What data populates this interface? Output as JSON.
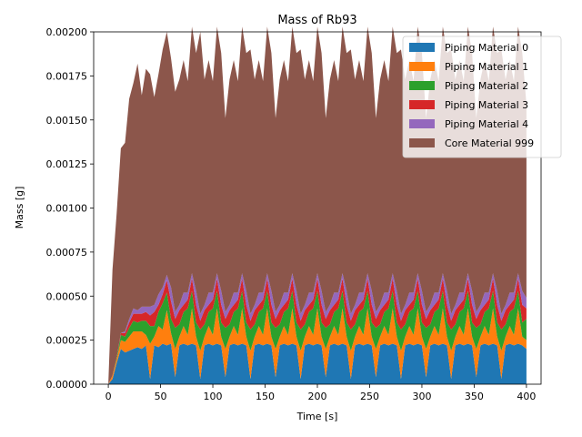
{
  "chart_data": {
    "type": "area",
    "stacked": true,
    "title": "Mass of Rb93",
    "xlabel": "Time [s]",
    "ylabel": "Mass [g]",
    "xlim": [
      -14,
      414
    ],
    "ylim": [
      0,
      0.002
    ],
    "xticks": [
      0,
      50,
      100,
      150,
      200,
      250,
      300,
      350,
      400
    ],
    "xtick_labels": [
      "0",
      "50",
      "100",
      "150",
      "200",
      "250",
      "300",
      "350",
      "400"
    ],
    "yticks": [
      0,
      0.00025,
      0.0005,
      0.00075,
      0.001,
      0.00125,
      0.0015,
      0.00175,
      0.002
    ],
    "ytick_labels": [
      "0.00000",
      "0.00025",
      "0.00050",
      "0.00075",
      "0.00100",
      "0.00125",
      "0.00150",
      "0.00175",
      "0.00200"
    ],
    "legend_position": "top-right",
    "grid": false,
    "x": [
      0,
      4,
      8,
      12,
      16,
      20,
      24,
      28,
      32,
      36,
      40,
      44,
      48,
      52,
      56,
      60,
      64,
      68,
      72,
      76,
      80,
      84,
      88,
      92,
      96,
      100,
      104,
      108,
      112,
      116,
      120,
      124,
      128,
      132,
      136,
      140,
      144,
      148,
      152,
      156,
      160,
      164,
      168,
      172,
      176,
      180,
      184,
      188,
      192,
      196,
      200,
      204,
      208,
      212,
      216,
      220,
      224,
      228,
      232,
      236,
      240,
      244,
      248,
      252,
      256,
      260,
      264,
      268,
      272,
      276,
      280,
      284,
      288,
      292,
      296,
      300,
      304,
      308,
      312,
      316,
      320,
      324,
      328,
      332,
      336,
      340,
      344,
      348,
      352,
      356,
      360,
      364,
      368,
      372,
      376,
      380,
      384,
      388,
      392,
      396,
      400
    ],
    "series": [
      {
        "name": "Piping Material 0",
        "color": "#1f77b4",
        "values": [
          0,
          3e-05,
          0.00012,
          0.0002,
          0.00018,
          0.00019,
          0.0002,
          0.00021,
          0.0002,
          0.00022,
          3e-05,
          0.00022,
          0.00021,
          0.00023,
          0.00022,
          0.00023,
          4e-05,
          0.00022,
          0.00023,
          0.00022,
          0.00023,
          0.00022,
          3e-05,
          0.00022,
          0.00023,
          0.00022,
          0.00023,
          0.00022,
          4e-05,
          0.00022,
          0.00023,
          0.00022,
          0.00023,
          0.00022,
          3e-05,
          0.00022,
          0.00023,
          0.00022,
          0.00023,
          0.00022,
          4e-05,
          0.00022,
          0.00023,
          0.00022,
          0.00023,
          0.00022,
          3e-05,
          0.00022,
          0.00023,
          0.00022,
          0.00023,
          0.00022,
          4e-05,
          0.00022,
          0.00023,
          0.00022,
          0.00023,
          0.00022,
          3e-05,
          0.00022,
          0.00023,
          0.00022,
          0.00023,
          0.00022,
          4e-05,
          0.00022,
          0.00023,
          0.00022,
          0.00023,
          0.00022,
          3e-05,
          0.00022,
          0.00023,
          0.00022,
          0.00023,
          0.00022,
          4e-05,
          0.00022,
          0.00023,
          0.00022,
          0.00023,
          0.00022,
          3e-05,
          0.00022,
          0.00023,
          0.00022,
          0.00023,
          0.00022,
          4e-05,
          0.00022,
          0.00023,
          0.00022,
          0.00023,
          0.00022,
          3e-05,
          0.00022,
          0.00023,
          0.00022,
          0.00023,
          0.00022,
          0.0002
        ]
      },
      {
        "name": "Piping Material 1",
        "color": "#ff7f0e",
        "values": [
          0,
          2e-05,
          2e-05,
          5e-05,
          6e-05,
          8e-05,
          0.0001,
          9e-05,
          0.0001,
          6e-05,
          0.0002,
          5e-05,
          0.00012,
          8e-05,
          0.0002,
          6e-05,
          0.00016,
          5e-05,
          0.0001,
          6e-05,
          0.0002,
          5e-05,
          0.00016,
          5e-05,
          0.0001,
          6e-05,
          0.0002,
          5e-05,
          0.00016,
          5e-05,
          0.0001,
          6e-05,
          0.0002,
          5e-05,
          0.00016,
          5e-05,
          0.0001,
          6e-05,
          0.0002,
          5e-05,
          0.00016,
          5e-05,
          0.0001,
          6e-05,
          0.0002,
          5e-05,
          0.00016,
          5e-05,
          0.0001,
          6e-05,
          0.0002,
          5e-05,
          0.00016,
          5e-05,
          0.0001,
          6e-05,
          0.0002,
          5e-05,
          0.00016,
          5e-05,
          0.0001,
          6e-05,
          0.0002,
          5e-05,
          0.00016,
          5e-05,
          0.0001,
          6e-05,
          0.0002,
          5e-05,
          0.00016,
          5e-05,
          0.0001,
          6e-05,
          0.0002,
          5e-05,
          0.00016,
          5e-05,
          0.0001,
          6e-05,
          0.0002,
          5e-05,
          0.00016,
          5e-05,
          0.0001,
          6e-05,
          0.0002,
          5e-05,
          0.00016,
          5e-05,
          0.0001,
          6e-05,
          0.0002,
          5e-05,
          0.00016,
          5e-05,
          0.0001,
          6e-05,
          0.0002,
          5e-05,
          5e-05
        ]
      },
      {
        "name": "Piping Material 2",
        "color": "#2ca02c",
        "values": [
          0,
          0,
          1e-05,
          3e-05,
          3e-05,
          5e-05,
          6e-05,
          5e-05,
          6e-05,
          8e-05,
          0.0001,
          6e-05,
          8e-05,
          0.00015,
          0.0001,
          8e-05,
          0.00012,
          7e-05,
          8e-05,
          0.00015,
          0.0001,
          8e-05,
          0.00012,
          7e-05,
          8e-05,
          0.00015,
          0.0001,
          8e-05,
          0.00012,
          7e-05,
          8e-05,
          0.00015,
          0.0001,
          8e-05,
          0.00012,
          7e-05,
          8e-05,
          0.00015,
          0.0001,
          8e-05,
          0.00012,
          7e-05,
          8e-05,
          0.00015,
          0.0001,
          8e-05,
          0.00012,
          7e-05,
          8e-05,
          0.00015,
          0.0001,
          8e-05,
          0.00012,
          7e-05,
          8e-05,
          0.00015,
          0.0001,
          8e-05,
          0.00012,
          7e-05,
          8e-05,
          0.00015,
          0.0001,
          8e-05,
          0.00012,
          7e-05,
          8e-05,
          0.00015,
          0.0001,
          8e-05,
          0.00012,
          7e-05,
          8e-05,
          0.00015,
          0.0001,
          8e-05,
          0.00012,
          7e-05,
          8e-05,
          0.00015,
          0.0001,
          8e-05,
          0.00012,
          7e-05,
          8e-05,
          0.00015,
          0.0001,
          8e-05,
          0.00012,
          7e-05,
          8e-05,
          0.00015,
          0.0001,
          8e-05,
          0.00012,
          7e-05,
          8e-05,
          0.00015,
          0.0001,
          8e-05,
          0.00012
        ]
      },
      {
        "name": "Piping Material 3",
        "color": "#d62728",
        "values": [
          0,
          0,
          0,
          1e-05,
          2e-05,
          3e-05,
          4e-05,
          5e-05,
          4e-05,
          5e-05,
          6e-05,
          8e-05,
          4e-05,
          5e-05,
          7e-05,
          0.0001,
          5e-05,
          8e-05,
          4e-05,
          5e-05,
          7e-05,
          0.0001,
          5e-05,
          8e-05,
          4e-05,
          5e-05,
          7e-05,
          0.0001,
          5e-05,
          8e-05,
          4e-05,
          5e-05,
          7e-05,
          0.0001,
          5e-05,
          8e-05,
          4e-05,
          5e-05,
          7e-05,
          0.0001,
          5e-05,
          8e-05,
          4e-05,
          5e-05,
          7e-05,
          0.0001,
          5e-05,
          8e-05,
          4e-05,
          5e-05,
          7e-05,
          0.0001,
          5e-05,
          8e-05,
          4e-05,
          5e-05,
          7e-05,
          0.0001,
          5e-05,
          8e-05,
          4e-05,
          5e-05,
          7e-05,
          0.0001,
          5e-05,
          8e-05,
          4e-05,
          5e-05,
          7e-05,
          0.0001,
          5e-05,
          8e-05,
          4e-05,
          5e-05,
          7e-05,
          0.0001,
          5e-05,
          8e-05,
          4e-05,
          5e-05,
          7e-05,
          0.0001,
          5e-05,
          8e-05,
          4e-05,
          5e-05,
          7e-05,
          0.0001,
          5e-05,
          8e-05,
          4e-05,
          5e-05,
          7e-05,
          0.0001,
          5e-05,
          8e-05,
          4e-05,
          5e-05,
          7e-05,
          0.0001,
          6e-05
        ]
      },
      {
        "name": "Piping Material 4",
        "color": "#9467bd",
        "values": [
          0,
          0,
          0,
          0,
          1e-05,
          2e-05,
          3e-05,
          2e-05,
          4e-05,
          3e-05,
          5e-05,
          4e-05,
          6e-05,
          4e-05,
          3e-05,
          8e-05,
          4e-05,
          3e-05,
          7e-05,
          4e-05,
          3e-05,
          8e-05,
          4e-05,
          3e-05,
          7e-05,
          4e-05,
          3e-05,
          8e-05,
          4e-05,
          3e-05,
          7e-05,
          4e-05,
          3e-05,
          8e-05,
          4e-05,
          3e-05,
          7e-05,
          4e-05,
          3e-05,
          8e-05,
          4e-05,
          3e-05,
          7e-05,
          4e-05,
          3e-05,
          8e-05,
          4e-05,
          3e-05,
          7e-05,
          4e-05,
          3e-05,
          8e-05,
          4e-05,
          3e-05,
          7e-05,
          4e-05,
          3e-05,
          8e-05,
          4e-05,
          3e-05,
          7e-05,
          4e-05,
          3e-05,
          8e-05,
          4e-05,
          3e-05,
          7e-05,
          4e-05,
          3e-05,
          8e-05,
          4e-05,
          3e-05,
          7e-05,
          4e-05,
          3e-05,
          8e-05,
          4e-05,
          3e-05,
          7e-05,
          4e-05,
          3e-05,
          8e-05,
          4e-05,
          3e-05,
          7e-05,
          4e-05,
          3e-05,
          8e-05,
          4e-05,
          3e-05,
          7e-05,
          4e-05,
          3e-05,
          8e-05,
          4e-05,
          3e-05,
          7e-05,
          4e-05,
          3e-05,
          8e-05,
          6e-05
        ]
      },
      {
        "name": "Core Material 999",
        "color": "#8c564b",
        "values": [
          0,
          0.0006,
          0.00082,
          0.00105,
          0.00107,
          0.00125,
          0.00128,
          0.0014,
          0.0012,
          0.00135,
          0.00132,
          0.00118,
          0.00125,
          0.00135,
          0.00138,
          0.0013,
          0.00125,
          0.00128,
          0.00132,
          0.0012,
          0.0014,
          0.00135,
          0.0016,
          0.00128,
          0.00132,
          0.0012,
          0.0014,
          0.00135,
          0.0011,
          0.00128,
          0.00132,
          0.0012,
          0.0014,
          0.00135,
          0.0015,
          0.00128,
          0.00132,
          0.0012,
          0.0014,
          0.00135,
          0.0011,
          0.00128,
          0.00132,
          0.0012,
          0.0014,
          0.00135,
          0.0015,
          0.00128,
          0.00132,
          0.0012,
          0.0014,
          0.00135,
          0.0011,
          0.00128,
          0.00132,
          0.0012,
          0.0014,
          0.00135,
          0.0015,
          0.00128,
          0.00132,
          0.0012,
          0.0014,
          0.00135,
          0.0011,
          0.00128,
          0.00132,
          0.0012,
          0.0014,
          0.00135,
          0.0015,
          0.00128,
          0.00132,
          0.0012,
          0.0014,
          0.00135,
          0.0011,
          0.00128,
          0.00132,
          0.0012,
          0.0014,
          0.00135,
          0.0015,
          0.00128,
          0.00132,
          0.0012,
          0.0014,
          0.00135,
          0.0011,
          0.00128,
          0.00132,
          0.0012,
          0.0014,
          0.00135,
          0.0015,
          0.00128,
          0.00132,
          0.0012,
          0.0014,
          0.00135,
          0.0011
        ]
      }
    ]
  }
}
